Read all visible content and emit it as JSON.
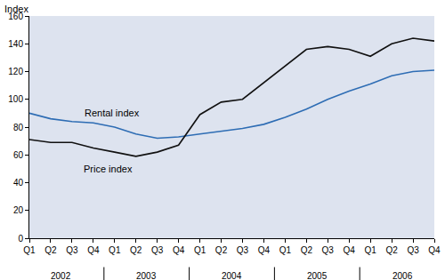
{
  "chart_data": {
    "type": "line",
    "y_label": "Index",
    "categories": [
      "Q1",
      "Q2",
      "Q3",
      "Q4",
      "Q1",
      "Q2",
      "Q3",
      "Q4",
      "Q1",
      "Q2",
      "Q3",
      "Q4",
      "Q1",
      "Q2",
      "Q3",
      "Q4",
      "Q1",
      "Q2",
      "Q3",
      "Q4"
    ],
    "groups": [
      "2002",
      "2002",
      "2002",
      "2002",
      "2003",
      "2003",
      "2003",
      "2003",
      "2004",
      "2004",
      "2004",
      "2004",
      "2005",
      "2005",
      "2005",
      "2005",
      "2006",
      "2006",
      "2006",
      "2006"
    ],
    "ylim": [
      0,
      160
    ],
    "yticks": [
      0,
      20,
      40,
      60,
      80,
      100,
      120,
      140,
      160
    ],
    "grid": false,
    "series": [
      {
        "name": "Rental index",
        "color": "#2e6db4",
        "label_position": [
          3.9,
          90
        ],
        "values": [
          90,
          86,
          84,
          83,
          80,
          75,
          72,
          73,
          75,
          77,
          79,
          82,
          87,
          93,
          100,
          106,
          111,
          117,
          120,
          121
        ]
      },
      {
        "name": "Price index",
        "color": "#111111",
        "label_position": [
          3.7,
          50
        ],
        "values": [
          71,
          69,
          69,
          65,
          62,
          59,
          62,
          67,
          89,
          98,
          100,
          112,
          124,
          136,
          138,
          136,
          131,
          140,
          144,
          142
        ]
      }
    ]
  }
}
